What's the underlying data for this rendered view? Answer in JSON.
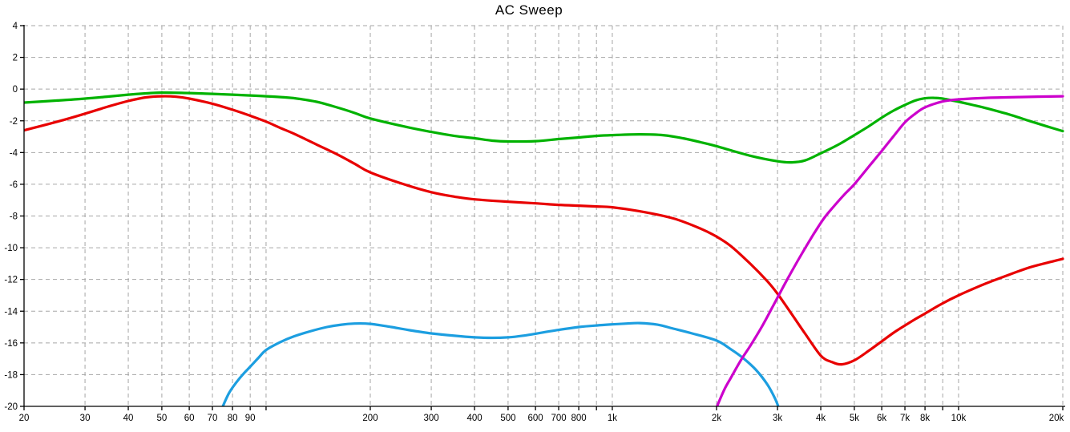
{
  "title": "AC Sweep",
  "colors": {
    "green_trace": "#00B200",
    "red_trace": "#E80000",
    "blue_trace": "#1C9EE0",
    "magenta_trace": "#CC00CC",
    "grid": "#A6A6A6",
    "axis": "#000000",
    "text": "#000000",
    "background": "#FFFFFF"
  },
  "chart_data": {
    "type": "line",
    "title": "AC Sweep",
    "xlabel": "",
    "ylabel": "",
    "x_scale": "log",
    "xlim": [
      20,
      20000
    ],
    "ylim": [
      -20,
      4
    ],
    "grid": true,
    "legend": "none",
    "y_ticks": [
      {
        "v": 4,
        "t": "4"
      },
      {
        "v": 2,
        "t": "2"
      },
      {
        "v": 0,
        "t": "0"
      },
      {
        "v": -2,
        "t": "-2"
      },
      {
        "v": -4,
        "t": "-4"
      },
      {
        "v": -6,
        "t": "-6"
      },
      {
        "v": -8,
        "t": "-8"
      },
      {
        "v": -10,
        "t": "-10"
      },
      {
        "v": -12,
        "t": "-12"
      },
      {
        "v": -14,
        "t": "-14"
      },
      {
        "v": -16,
        "t": "-16"
      },
      {
        "v": -18,
        "t": "-18"
      },
      {
        "v": -20,
        "t": "-20"
      }
    ],
    "x_labeled_ticks": [
      {
        "v": 20,
        "t": "20"
      },
      {
        "v": 30,
        "t": "30"
      },
      {
        "v": 40,
        "t": "40"
      },
      {
        "v": 50,
        "t": "50"
      },
      {
        "v": 60,
        "t": "60"
      },
      {
        "v": 70,
        "t": "70"
      },
      {
        "v": 80,
        "t": "80"
      },
      {
        "v": 90,
        "t": "90"
      },
      {
        "v": 200,
        "t": "200"
      },
      {
        "v": 300,
        "t": "300"
      },
      {
        "v": 400,
        "t": "400"
      },
      {
        "v": 500,
        "t": "500"
      },
      {
        "v": 600,
        "t": "600"
      },
      {
        "v": 700,
        "t": "700"
      },
      {
        "v": 800,
        "t": "800"
      },
      {
        "v": 1000,
        "t": "1k"
      },
      {
        "v": 2000,
        "t": "2k"
      },
      {
        "v": 3000,
        "t": "3k"
      },
      {
        "v": 4000,
        "t": "4k"
      },
      {
        "v": 5000,
        "t": "5k"
      },
      {
        "v": 6000,
        "t": "6k"
      },
      {
        "v": 7000,
        "t": "7k"
      },
      {
        "v": 8000,
        "t": "8k"
      },
      {
        "v": 10000,
        "t": "10k"
      },
      {
        "v": 20000,
        "t": "20k"
      }
    ],
    "x_gridlines": [
      30,
      40,
      50,
      60,
      70,
      80,
      90,
      100,
      200,
      300,
      400,
      500,
      600,
      700,
      800,
      900,
      1000,
      2000,
      3000,
      4000,
      5000,
      6000,
      7000,
      8000,
      9000,
      10000,
      20000
    ],
    "series": [
      {
        "name": "green-trace",
        "color": "#00B200",
        "points": [
          [
            20,
            -0.85
          ],
          [
            25,
            -0.72
          ],
          [
            30,
            -0.6
          ],
          [
            35,
            -0.47
          ],
          [
            40,
            -0.35
          ],
          [
            45,
            -0.27
          ],
          [
            50,
            -0.22
          ],
          [
            60,
            -0.25
          ],
          [
            70,
            -0.3
          ],
          [
            80,
            -0.35
          ],
          [
            90,
            -0.4
          ],
          [
            100,
            -0.45
          ],
          [
            110,
            -0.5
          ],
          [
            120,
            -0.57
          ],
          [
            140,
            -0.8
          ],
          [
            160,
            -1.15
          ],
          [
            180,
            -1.5
          ],
          [
            200,
            -1.85
          ],
          [
            250,
            -2.35
          ],
          [
            300,
            -2.7
          ],
          [
            350,
            -2.95
          ],
          [
            400,
            -3.1
          ],
          [
            450,
            -3.25
          ],
          [
            500,
            -3.3
          ],
          [
            600,
            -3.28
          ],
          [
            700,
            -3.15
          ],
          [
            800,
            -3.05
          ],
          [
            900,
            -2.95
          ],
          [
            1000,
            -2.9
          ],
          [
            1200,
            -2.85
          ],
          [
            1400,
            -2.9
          ],
          [
            1600,
            -3.1
          ],
          [
            1800,
            -3.35
          ],
          [
            2000,
            -3.6
          ],
          [
            2500,
            -4.2
          ],
          [
            3000,
            -4.55
          ],
          [
            3300,
            -4.62
          ],
          [
            3600,
            -4.5
          ],
          [
            4000,
            -4.05
          ],
          [
            4500,
            -3.5
          ],
          [
            5000,
            -2.9
          ],
          [
            5500,
            -2.35
          ],
          [
            6000,
            -1.8
          ],
          [
            6500,
            -1.35
          ],
          [
            7000,
            -1.0
          ],
          [
            7500,
            -0.72
          ],
          [
            8000,
            -0.58
          ],
          [
            8500,
            -0.55
          ],
          [
            9000,
            -0.6
          ],
          [
            10000,
            -0.8
          ],
          [
            11000,
            -1.0
          ],
          [
            12000,
            -1.2
          ],
          [
            14000,
            -1.6
          ],
          [
            16000,
            -2.0
          ],
          [
            18000,
            -2.35
          ],
          [
            20000,
            -2.65
          ]
        ]
      },
      {
        "name": "red-trace",
        "color": "#E80000",
        "points": [
          [
            20,
            -2.6
          ],
          [
            25,
            -2.05
          ],
          [
            30,
            -1.55
          ],
          [
            35,
            -1.1
          ],
          [
            40,
            -0.75
          ],
          [
            45,
            -0.52
          ],
          [
            50,
            -0.45
          ],
          [
            55,
            -0.48
          ],
          [
            60,
            -0.6
          ],
          [
            70,
            -0.92
          ],
          [
            80,
            -1.3
          ],
          [
            90,
            -1.68
          ],
          [
            100,
            -2.05
          ],
          [
            110,
            -2.45
          ],
          [
            120,
            -2.8
          ],
          [
            140,
            -3.5
          ],
          [
            160,
            -4.1
          ],
          [
            180,
            -4.7
          ],
          [
            200,
            -5.25
          ],
          [
            250,
            -6.0
          ],
          [
            300,
            -6.5
          ],
          [
            350,
            -6.78
          ],
          [
            400,
            -6.95
          ],
          [
            500,
            -7.1
          ],
          [
            600,
            -7.2
          ],
          [
            700,
            -7.3
          ],
          [
            800,
            -7.35
          ],
          [
            900,
            -7.4
          ],
          [
            1000,
            -7.45
          ],
          [
            1200,
            -7.7
          ],
          [
            1500,
            -8.15
          ],
          [
            1800,
            -8.8
          ],
          [
            2000,
            -9.3
          ],
          [
            2200,
            -9.9
          ],
          [
            2500,
            -11.0
          ],
          [
            2800,
            -12.1
          ],
          [
            3000,
            -12.9
          ],
          [
            3300,
            -14.2
          ],
          [
            3600,
            -15.4
          ],
          [
            4000,
            -16.8
          ],
          [
            4300,
            -17.2
          ],
          [
            4600,
            -17.35
          ],
          [
            5000,
            -17.1
          ],
          [
            5500,
            -16.5
          ],
          [
            6000,
            -15.9
          ],
          [
            6500,
            -15.35
          ],
          [
            7000,
            -14.9
          ],
          [
            7500,
            -14.5
          ],
          [
            8000,
            -14.15
          ],
          [
            9000,
            -13.5
          ],
          [
            10000,
            -13.0
          ],
          [
            11000,
            -12.6
          ],
          [
            12000,
            -12.25
          ],
          [
            14000,
            -11.7
          ],
          [
            16000,
            -11.25
          ],
          [
            18000,
            -10.95
          ],
          [
            20000,
            -10.7
          ]
        ]
      },
      {
        "name": "blue-trace",
        "color": "#1C9EE0",
        "points": [
          [
            74,
            -20.3
          ],
          [
            78,
            -19.2
          ],
          [
            82,
            -18.5
          ],
          [
            86,
            -17.95
          ],
          [
            90,
            -17.5
          ],
          [
            95,
            -16.95
          ],
          [
            100,
            -16.45
          ],
          [
            110,
            -15.95
          ],
          [
            120,
            -15.6
          ],
          [
            135,
            -15.25
          ],
          [
            150,
            -15.0
          ],
          [
            165,
            -14.85
          ],
          [
            180,
            -14.78
          ],
          [
            200,
            -14.8
          ],
          [
            230,
            -15.0
          ],
          [
            260,
            -15.2
          ],
          [
            300,
            -15.4
          ],
          [
            350,
            -15.55
          ],
          [
            400,
            -15.65
          ],
          [
            450,
            -15.68
          ],
          [
            500,
            -15.65
          ],
          [
            550,
            -15.55
          ],
          [
            600,
            -15.42
          ],
          [
            700,
            -15.18
          ],
          [
            800,
            -15.0
          ],
          [
            900,
            -14.9
          ],
          [
            1000,
            -14.83
          ],
          [
            1100,
            -14.78
          ],
          [
            1200,
            -14.75
          ],
          [
            1350,
            -14.85
          ],
          [
            1500,
            -15.1
          ],
          [
            1700,
            -15.4
          ],
          [
            2000,
            -15.85
          ],
          [
            2200,
            -16.4
          ],
          [
            2400,
            -17.0
          ],
          [
            2600,
            -17.7
          ],
          [
            2800,
            -18.6
          ],
          [
            2950,
            -19.5
          ],
          [
            3050,
            -20.3
          ]
        ]
      },
      {
        "name": "magenta-trace",
        "color": "#CC00CC",
        "points": [
          [
            1980,
            -20.3
          ],
          [
            2100,
            -19.0
          ],
          [
            2200,
            -18.2
          ],
          [
            2350,
            -17.1
          ],
          [
            2500,
            -16.2
          ],
          [
            2700,
            -15.0
          ],
          [
            2900,
            -13.75
          ],
          [
            3050,
            -12.85
          ],
          [
            3200,
            -12.0
          ],
          [
            3500,
            -10.5
          ],
          [
            3800,
            -9.2
          ],
          [
            4100,
            -8.1
          ],
          [
            4400,
            -7.3
          ],
          [
            4700,
            -6.6
          ],
          [
            5000,
            -6.0
          ],
          [
            5500,
            -4.9
          ],
          [
            6000,
            -3.9
          ],
          [
            6500,
            -2.95
          ],
          [
            7000,
            -2.1
          ],
          [
            7500,
            -1.55
          ],
          [
            8000,
            -1.15
          ],
          [
            9000,
            -0.78
          ],
          [
            10000,
            -0.65
          ],
          [
            12000,
            -0.55
          ],
          [
            15000,
            -0.5
          ],
          [
            20000,
            -0.45
          ]
        ]
      }
    ]
  }
}
